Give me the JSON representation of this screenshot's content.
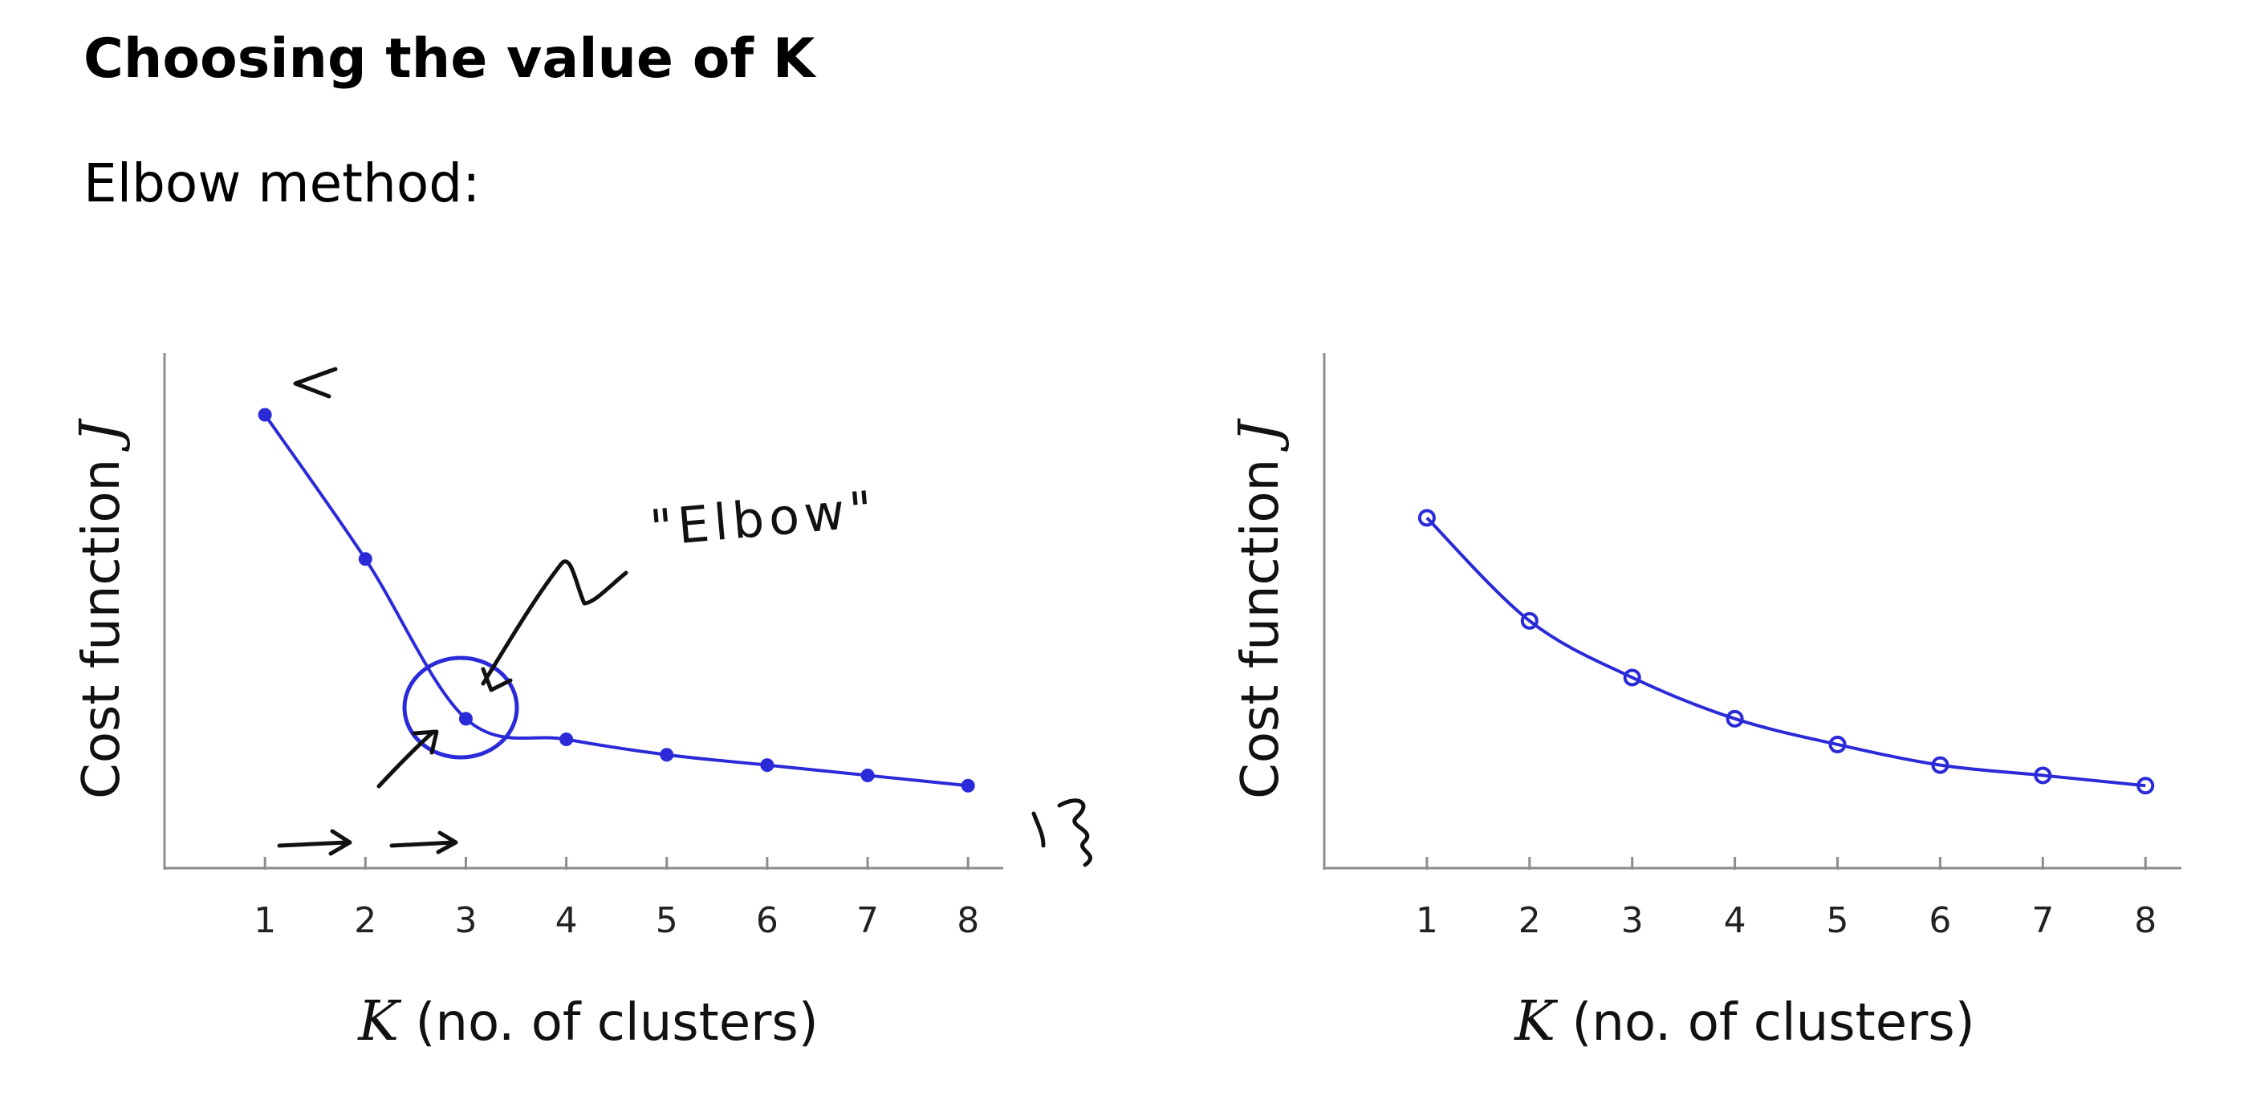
{
  "slide": {
    "title": "Choosing the value of K",
    "subtitle": "Elbow method:"
  },
  "annotations": {
    "elbow_label": "\"Elbow\""
  },
  "chart_data": [
    {
      "type": "line",
      "x": [
        1,
        2,
        3,
        4,
        5,
        6,
        7,
        8
      ],
      "x_tick_labels": [
        "1",
        "2",
        "3",
        "4",
        "5",
        "6",
        "7",
        "8"
      ],
      "y": [
        0.88,
        0.6,
        0.29,
        0.25,
        0.22,
        0.2,
        0.18,
        0.16
      ],
      "xlabel_var": "K",
      "xlabel": "(no. of clusters)",
      "ylabel": "Cost function",
      "ylabel_var": "J",
      "xlim": [
        0,
        8.35
      ],
      "ylim": [
        0,
        1
      ],
      "y_ticks": "none",
      "grid": false,
      "legend": "none",
      "color": "#2a2ad8"
    },
    {
      "type": "line",
      "x": [
        1,
        2,
        3,
        4,
        5,
        6,
        7,
        8
      ],
      "x_tick_labels": [
        "1",
        "2",
        "3",
        "4",
        "5",
        "6",
        "7",
        "8"
      ],
      "y": [
        0.68,
        0.48,
        0.37,
        0.29,
        0.24,
        0.2,
        0.18,
        0.16
      ],
      "xlabel_var": "K",
      "xlabel": "(no. of clusters)",
      "ylabel": "Cost function",
      "ylabel_var": "J",
      "xlim": [
        0,
        8.35
      ],
      "ylim": [
        0,
        1
      ],
      "y_ticks": "none",
      "grid": false,
      "legend": "none",
      "color": "#2a2ad8"
    }
  ]
}
